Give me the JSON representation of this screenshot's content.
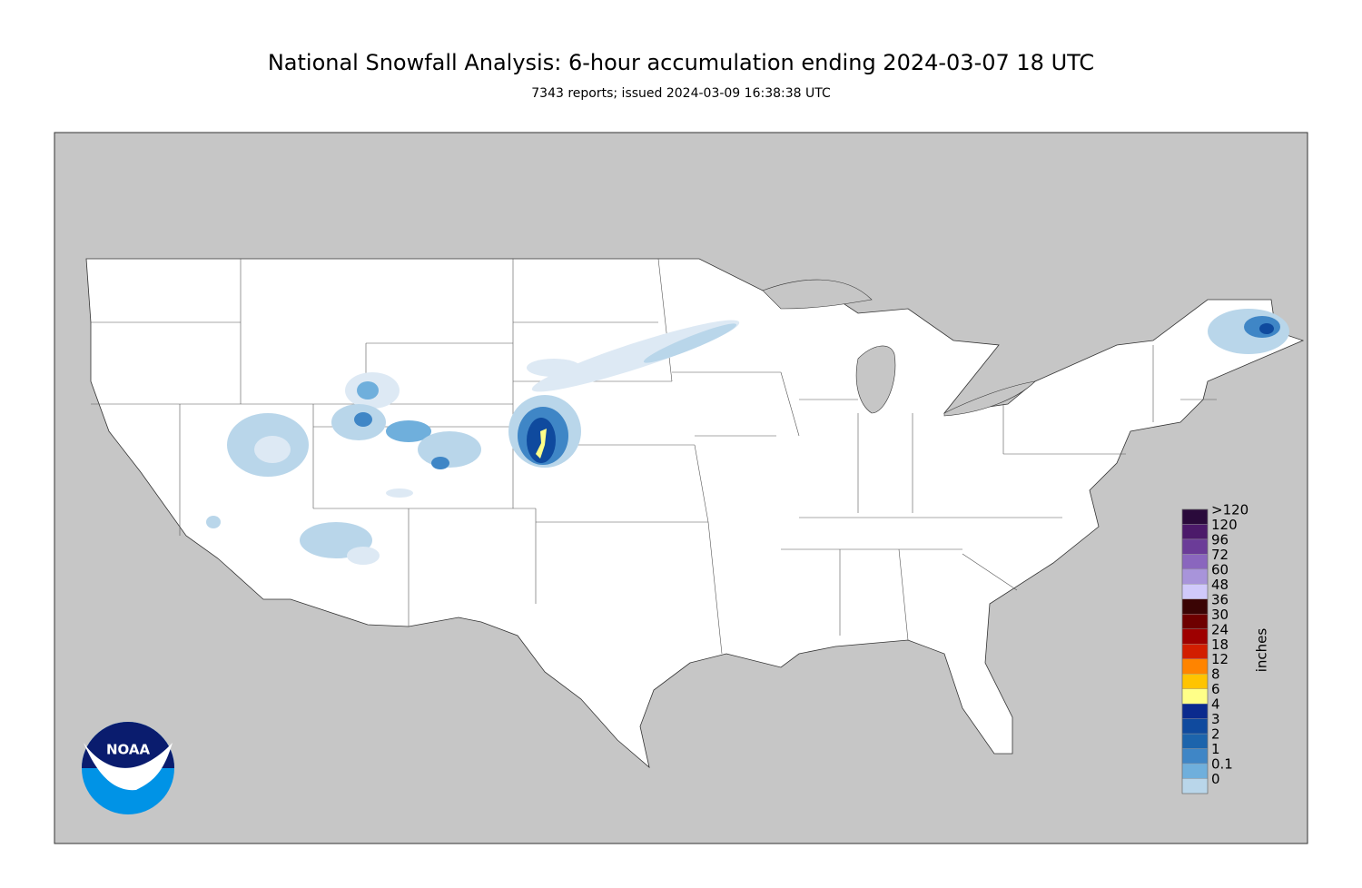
{
  "title": "National Snowfall Analysis: 6-hour accumulation ending 2024-03-07 18 UTC",
  "subtitle": "7343 reports; issued 2024-03-09 16:38:38 UTC",
  "legend": {
    "unit": "inches",
    "items": [
      {
        "label": ">120",
        "color": "#2a0a3b"
      },
      {
        "label": "120",
        "color": "#4c1a6a"
      },
      {
        "label": "96",
        "color": "#6b3c98"
      },
      {
        "label": "72",
        "color": "#8a66be"
      },
      {
        "label": "60",
        "color": "#a894da"
      },
      {
        "label": "48",
        "color": "#d0c9fa"
      },
      {
        "label": "36",
        "color": "#3a0404"
      },
      {
        "label": "30",
        "color": "#6e0000"
      },
      {
        "label": "24",
        "color": "#9e0000"
      },
      {
        "label": "18",
        "color": "#d21e00"
      },
      {
        "label": "12",
        "color": "#ff8400"
      },
      {
        "label": "8",
        "color": "#ffc400"
      },
      {
        "label": "6",
        "color": "#ffff88"
      },
      {
        "label": "4",
        "color": "#0b2a8e"
      },
      {
        "label": "3",
        "color": "#0f4a9e"
      },
      {
        "label": "2",
        "color": "#1c64ac"
      },
      {
        "label": "1",
        "color": "#3f86c6"
      },
      {
        "label": "0.1",
        "color": "#6fafdc"
      },
      {
        "label": "0",
        "color": "#b9d6ea"
      }
    ]
  },
  "logo": {
    "text": "NOAA"
  }
}
